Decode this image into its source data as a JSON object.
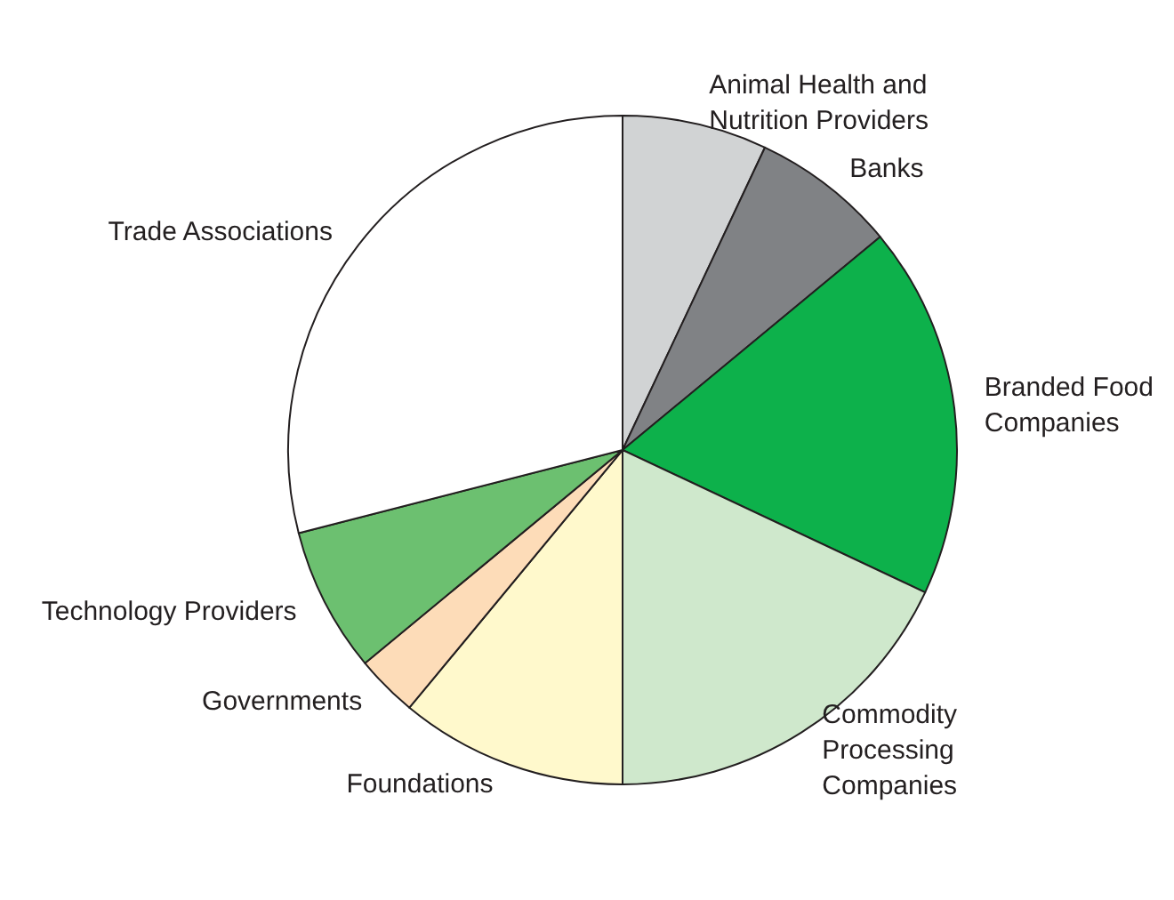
{
  "chart_data": {
    "type": "pie",
    "categories": [
      "Animal Health and Nutrition Providers",
      "Banks",
      "Branded Food Companies",
      "Commodity Processing Companies",
      "Foundations",
      "Governments",
      "Technology Providers",
      "Trade Associations"
    ],
    "values": [
      7,
      7,
      18,
      18,
      11,
      3,
      7,
      29
    ],
    "colors": [
      "#d1d3d4",
      "#808285",
      "#0db14b",
      "#cfe8cc",
      "#fff9cc",
      "#fddcb8",
      "#6cc070",
      "#ffffff"
    ]
  }
}
